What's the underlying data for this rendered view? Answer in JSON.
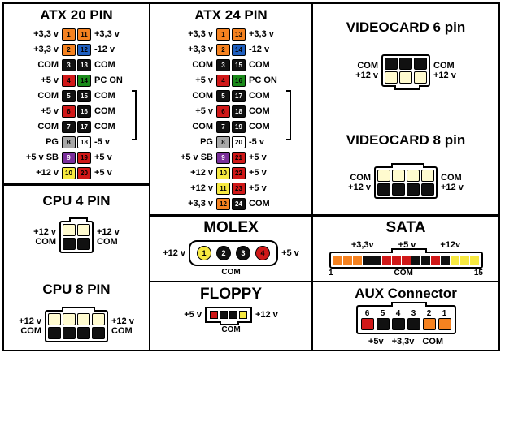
{
  "colors": {
    "orange": "#f58220",
    "blue": "#1f5fbf",
    "black": "#111111",
    "green": "#1a8a1a",
    "white": "#ffffff",
    "red": "#d01818",
    "gray": "#a8a8a8",
    "purple": "#7a2e9a",
    "yellow": "#f7e940",
    "ltyellow": "#fffbcf",
    "bg": "#ffffff"
  },
  "atx20": {
    "title": "ATX 20 PIN",
    "rows": [
      {
        "l": "+3,3 v",
        "r": "+3,3 v",
        "p1": [
          "1",
          "orange"
        ],
        "p2": [
          "11",
          "orange"
        ]
      },
      {
        "l": "+3,3 v",
        "r": "-12 v",
        "p1": [
          "2",
          "orange"
        ],
        "p2": [
          "12",
          "blue"
        ]
      },
      {
        "l": "COM",
        "r": "COM",
        "p1": [
          "3",
          "black",
          "w"
        ],
        "p2": [
          "13",
          "black",
          "w"
        ]
      },
      {
        "l": "+5 v",
        "r": "PC ON",
        "p1": [
          "4",
          "red"
        ],
        "p2": [
          "14",
          "green"
        ]
      },
      {
        "l": "COM",
        "r": "COM",
        "p1": [
          "5",
          "black",
          "w"
        ],
        "p2": [
          "15",
          "black",
          "w"
        ]
      },
      {
        "l": "+5 v",
        "r": "COM",
        "p1": [
          "6",
          "red"
        ],
        "p2": [
          "16",
          "black",
          "w"
        ]
      },
      {
        "l": "COM",
        "r": "COM",
        "p1": [
          "7",
          "black",
          "w"
        ],
        "p2": [
          "17",
          "black",
          "w"
        ]
      },
      {
        "l": "PG",
        "r": "-5 v",
        "p1": [
          "8",
          "gray"
        ],
        "p2": [
          "18",
          "white"
        ]
      },
      {
        "l": "+5 v SB",
        "r": "+5 v",
        "p1": [
          "9",
          "purple",
          "w"
        ],
        "p2": [
          "19",
          "red"
        ]
      },
      {
        "l": "+12 v",
        "r": "+5 v",
        "p1": [
          "10",
          "yellow"
        ],
        "p2": [
          "20",
          "red"
        ]
      }
    ]
  },
  "atx24": {
    "title": "ATX 24 PIN",
    "rows": [
      {
        "l": "+3,3 v",
        "r": "+3,3 v",
        "p1": [
          "1",
          "orange"
        ],
        "p2": [
          "13",
          "orange"
        ]
      },
      {
        "l": "+3,3 v",
        "r": "-12 v",
        "p1": [
          "2",
          "orange"
        ],
        "p2": [
          "14",
          "blue"
        ]
      },
      {
        "l": "COM",
        "r": "COM",
        "p1": [
          "3",
          "black",
          "w"
        ],
        "p2": [
          "15",
          "black",
          "w"
        ]
      },
      {
        "l": "+5 v",
        "r": "PC ON",
        "p1": [
          "4",
          "red"
        ],
        "p2": [
          "16",
          "green"
        ]
      },
      {
        "l": "COM",
        "r": "COM",
        "p1": [
          "5",
          "black",
          "w"
        ],
        "p2": [
          "17",
          "black",
          "w"
        ]
      },
      {
        "l": "+5 v",
        "r": "COM",
        "p1": [
          "6",
          "red"
        ],
        "p2": [
          "18",
          "black",
          "w"
        ]
      },
      {
        "l": "COM",
        "r": "COM",
        "p1": [
          "7",
          "black",
          "w"
        ],
        "p2": [
          "19",
          "black",
          "w"
        ]
      },
      {
        "l": "PG",
        "r": "-5 v",
        "p1": [
          "8",
          "gray"
        ],
        "p2": [
          "20",
          "white"
        ]
      },
      {
        "l": "+5 v SB",
        "r": "+5 v",
        "p1": [
          "9",
          "purple",
          "w"
        ],
        "p2": [
          "21",
          "red"
        ]
      },
      {
        "l": "+12 v",
        "r": "+5 v",
        "p1": [
          "10",
          "yellow"
        ],
        "p2": [
          "22",
          "red"
        ]
      },
      {
        "l": "+12 v",
        "r": "+5 v",
        "p1": [
          "11",
          "yellow"
        ],
        "p2": [
          "23",
          "red"
        ]
      },
      {
        "l": "+3,3 v",
        "r": "COM",
        "p1": [
          "12",
          "orange"
        ],
        "p2": [
          "24",
          "black",
          "w"
        ]
      }
    ]
  },
  "video6": {
    "title": "VIDEOCARD 6 pin",
    "top": {
      "l": "COM",
      "r": "COM",
      "colors": [
        "black",
        "black",
        "black"
      ]
    },
    "bot": {
      "l": "+12 v",
      "r": "+12 v",
      "colors": [
        "ltyellow",
        "ltyellow",
        "ltyellow"
      ]
    }
  },
  "video8": {
    "title": "VIDEOCARD 8 pin",
    "top": {
      "l": "COM",
      "r": "COM",
      "colors": [
        "ltyellow",
        "ltyellow",
        "ltyellow",
        "ltyellow"
      ]
    },
    "bot": {
      "l": "+12 v",
      "r": "+12 v",
      "colors": [
        "black",
        "black",
        "black",
        "black"
      ]
    }
  },
  "cpu4": {
    "title": "CPU 4 PIN",
    "top": {
      "l": "+12 v",
      "r": "+12 v",
      "colors": [
        "ltyellow",
        "ltyellow"
      ]
    },
    "bot": {
      "l": "COM",
      "r": "COM",
      "colors": [
        "black",
        "black"
      ]
    }
  },
  "cpu8": {
    "title": "CPU 8 PIN",
    "top": {
      "l": "+12 v",
      "r": "+12 v",
      "colors": [
        "ltyellow",
        "ltyellow",
        "ltyellow",
        "ltyellow"
      ]
    },
    "bot": {
      "l": "COM",
      "r": "COM",
      "colors": [
        "black",
        "black",
        "black",
        "black"
      ]
    }
  },
  "molex": {
    "title": "MOLEX",
    "pins": [
      [
        "1",
        "yellow"
      ],
      [
        "2",
        "black",
        "w"
      ],
      [
        "3",
        "black",
        "w"
      ],
      [
        "4",
        "red"
      ]
    ],
    "l": "+12 v",
    "r": "+5 v",
    "bot": "COM"
  },
  "floppy": {
    "title": "FLOPPY",
    "pins": [
      "red",
      "black",
      "black",
      "yellow"
    ],
    "l": "+5 v",
    "r": "+12 v",
    "bot": "COM"
  },
  "sata": {
    "title": "SATA",
    "top_labels": [
      "+3,3v",
      "+5 v",
      "+12v"
    ],
    "segs": [
      "orange",
      "orange",
      "orange",
      "black",
      "black",
      "red",
      "red",
      "red",
      "black",
      "black",
      "red",
      "black",
      "yellow",
      "yellow",
      "yellow"
    ],
    "lnum": "1",
    "rnum": "15",
    "bot": "COM"
  },
  "aux": {
    "title": "AUX Connector",
    "pins": [
      [
        "6",
        "red"
      ],
      [
        "5",
        "black"
      ],
      [
        "4",
        "black"
      ],
      [
        "3",
        "black"
      ],
      [
        "2",
        "orange"
      ],
      [
        "1",
        "orange"
      ]
    ],
    "b": [
      "+5v",
      "+3,3v",
      "COM"
    ]
  }
}
